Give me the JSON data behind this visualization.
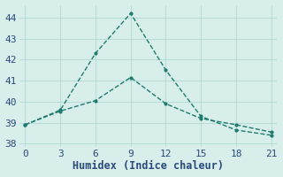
{
  "line1_x": [
    0,
    3,
    6,
    9,
    12,
    15,
    18,
    21
  ],
  "line1_y": [
    38.9,
    39.6,
    42.3,
    44.2,
    41.5,
    39.3,
    38.65,
    38.4
  ],
  "line2_x": [
    0,
    3,
    6,
    9,
    12,
    15,
    18,
    21
  ],
  "line2_y": [
    38.9,
    39.55,
    40.05,
    41.15,
    39.9,
    39.2,
    38.9,
    38.55
  ],
  "line_color": "#1e7b6e",
  "marker": ".",
  "markersize": 4,
  "linewidth": 1.0,
  "xlabel": "Humidex (Indice chaleur)",
  "xlim": [
    -0.5,
    21.5
  ],
  "ylim": [
    37.85,
    44.6
  ],
  "yticks": [
    38,
    39,
    40,
    41,
    42,
    43,
    44
  ],
  "xticks": [
    0,
    3,
    6,
    9,
    12,
    15,
    18,
    21
  ],
  "bg_color": "#d8eeeb",
  "grid_color": "#b8ddd8",
  "tick_color": "#2a4a7a",
  "font_family": "monospace",
  "xlabel_fontsize": 8.5,
  "tick_fontsize": 8
}
